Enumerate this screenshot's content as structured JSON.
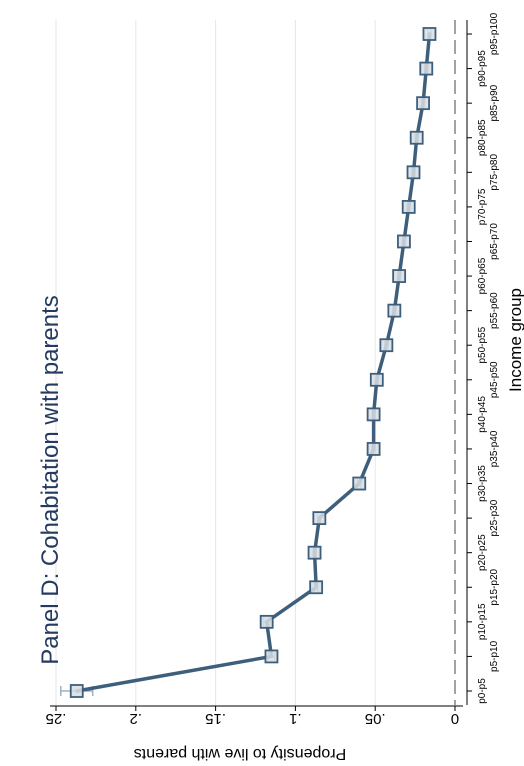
{
  "chart_data": {
    "type": "line",
    "title": "Panel D: Cohabitation with parents",
    "xlabel": "Income group",
    "ylabel": "Propensity to live with parents",
    "categories": [
      "p0-p5",
      "p5-p10",
      "p10-p15",
      "p15-p20",
      "p20-p25",
      "p25-p30",
      "p30-p35",
      "p35-p40",
      "p40-p45",
      "p45-p50",
      "p50-p55",
      "p55-p60",
      "p60-p65",
      "p65-p70",
      "p70-p75",
      "p75-p80",
      "p80-p85",
      "p85-p90",
      "p90-p95",
      "p95-p100"
    ],
    "series": [
      {
        "values": [
          0.237,
          0.115,
          0.118,
          0.087,
          0.088,
          0.085,
          0.06,
          0.051,
          0.051,
          0.049,
          0.043,
          0.038,
          0.035,
          0.032,
          0.029,
          0.026,
          0.024,
          0.02,
          0.018,
          0.016
        ],
        "ci_low": [
          0.227,
          0.113,
          0.116,
          0.086,
          0.087,
          0.084,
          0.059,
          0.05,
          0.05,
          0.048,
          0.042,
          0.037,
          0.034,
          0.031,
          0.028,
          0.025,
          0.023,
          0.019,
          0.017,
          0.015
        ],
        "ci_high": [
          0.247,
          0.117,
          0.12,
          0.088,
          0.089,
          0.086,
          0.061,
          0.052,
          0.052,
          0.05,
          0.044,
          0.039,
          0.036,
          0.033,
          0.03,
          0.027,
          0.025,
          0.021,
          0.019,
          0.017
        ]
      }
    ],
    "yticks": [
      {
        "value": 0,
        "label": "0"
      },
      {
        "value": 0.05,
        "label": ".05"
      },
      {
        "value": 0.1,
        "label": ".1"
      },
      {
        "value": 0.15,
        "label": ".15"
      },
      {
        "value": 0.2,
        "label": ".2"
      },
      {
        "value": 0.25,
        "label": ".25"
      }
    ],
    "ylim": [
      0,
      0.25
    ],
    "grid": true,
    "reference_line": 0,
    "orientation": "rotated-90-clockwise",
    "colors": {
      "line": "#3e5f7b",
      "marker_fill": "#d7dee4",
      "ci": "#9fb2c2",
      "grid": "#e6e6e6",
      "title": "#243a5e"
    }
  }
}
